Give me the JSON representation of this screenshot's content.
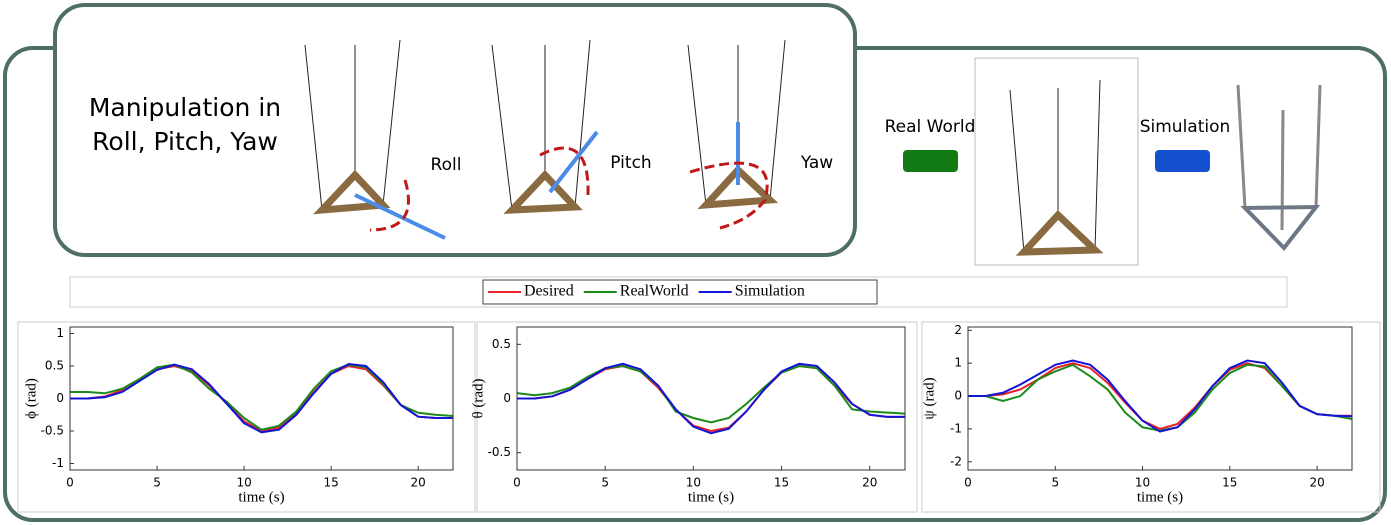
{
  "figure": {
    "title_lines": [
      "Manipulation in",
      "Roll, Pitch, Yaw"
    ],
    "motions": [
      "Roll",
      "Pitch",
      "Yaw"
    ],
    "sources": [
      "Real World",
      "Simulation"
    ]
  },
  "chart_data": [
    {
      "type": "line",
      "y_label": "ϕ (rad)",
      "x_label": "time (s)",
      "x": [
        0,
        1,
        2,
        3,
        4,
        5,
        6,
        7,
        8,
        9,
        10,
        11,
        12,
        13,
        14,
        15,
        16,
        17,
        18,
        19,
        20,
        21,
        22
      ],
      "xlim": [
        0,
        22
      ],
      "xticks": [
        0,
        5,
        10,
        15,
        20
      ],
      "ylim": [
        -1.1,
        1.1
      ],
      "yticks": [
        -1,
        -0.5,
        0,
        0.5,
        1
      ],
      "series": [
        {
          "name": "Desired",
          "color": "#e8202a",
          "values": [
            0,
            0,
            0.03,
            0.13,
            0.3,
            0.45,
            0.5,
            0.42,
            0.2,
            -0.08,
            -0.35,
            -0.5,
            -0.45,
            -0.22,
            0.1,
            0.38,
            0.5,
            0.45,
            0.2,
            -0.1,
            -0.28,
            -0.3,
            -0.3
          ]
        },
        {
          "name": "RealWorld",
          "color": "#1a8a1a",
          "values": [
            0.1,
            0.1,
            0.08,
            0.15,
            0.3,
            0.48,
            0.52,
            0.4,
            0.15,
            -0.05,
            -0.3,
            -0.48,
            -0.42,
            -0.2,
            0.15,
            0.42,
            0.52,
            0.48,
            0.22,
            -0.1,
            -0.22,
            -0.25,
            -0.27
          ]
        },
        {
          "name": "Simulation",
          "color": "#1414d8",
          "values": [
            0,
            0,
            0.02,
            0.1,
            0.27,
            0.44,
            0.52,
            0.45,
            0.22,
            -0.08,
            -0.38,
            -0.52,
            -0.48,
            -0.25,
            0.08,
            0.38,
            0.53,
            0.5,
            0.25,
            -0.1,
            -0.28,
            -0.3,
            -0.3
          ]
        }
      ]
    },
    {
      "type": "line",
      "y_label": "θ (rad)",
      "x_label": "time (s)",
      "x": [
        0,
        1,
        2,
        3,
        4,
        5,
        6,
        7,
        8,
        9,
        10,
        11,
        12,
        13,
        14,
        15,
        16,
        17,
        18,
        19,
        20,
        21,
        22
      ],
      "xlim": [
        0,
        22
      ],
      "xticks": [
        0,
        5,
        10,
        15,
        20
      ],
      "ylim": [
        -0.66,
        0.66
      ],
      "yticks": [
        -0.5,
        0,
        0.5
      ],
      "series": [
        {
          "color": "#e8202a",
          "values": [
            0,
            0,
            0.02,
            0.08,
            0.18,
            0.27,
            0.3,
            0.25,
            0.1,
            -0.1,
            -0.25,
            -0.3,
            -0.27,
            -0.12,
            0.08,
            0.24,
            0.3,
            0.28,
            0.12,
            -0.05,
            -0.15,
            -0.17,
            -0.17
          ]
        },
        {
          "color": "#1a8a1a",
          "values": [
            0.05,
            0.03,
            0.05,
            0.1,
            0.2,
            0.28,
            0.3,
            0.25,
            0.12,
            -0.12,
            -0.18,
            -0.22,
            -0.18,
            -0.05,
            0.1,
            0.24,
            0.3,
            0.28,
            0.12,
            -0.1,
            -0.12,
            -0.13,
            -0.14
          ]
        },
        {
          "color": "#1414d8",
          "values": [
            0,
            0,
            0.02,
            0.08,
            0.18,
            0.28,
            0.32,
            0.27,
            0.12,
            -0.1,
            -0.26,
            -0.32,
            -0.28,
            -0.12,
            0.08,
            0.25,
            0.32,
            0.3,
            0.15,
            -0.05,
            -0.15,
            -0.17,
            -0.17
          ]
        }
      ]
    },
    {
      "type": "line",
      "y_label": "ψ (rad)",
      "x_label": "time (s)",
      "x": [
        0,
        1,
        2,
        3,
        4,
        5,
        6,
        7,
        8,
        9,
        10,
        11,
        12,
        13,
        14,
        15,
        16,
        17,
        18,
        19,
        20,
        21,
        22
      ],
      "xlim": [
        0,
        22
      ],
      "xticks": [
        0,
        5,
        10,
        15,
        20
      ],
      "ylim": [
        -2.25,
        2.1
      ],
      "yticks": [
        -2,
        -1,
        0,
        1,
        2
      ],
      "series": [
        {
          "color": "#e8202a",
          "values": [
            0,
            0,
            0.05,
            0.2,
            0.5,
            0.85,
            1,
            0.85,
            0.4,
            -0.2,
            -0.75,
            -1,
            -0.85,
            -0.35,
            0.3,
            0.8,
            1,
            0.85,
            0.3,
            -0.3,
            -0.55,
            -0.6,
            -0.6
          ]
        },
        {
          "color": "#1a8a1a",
          "values": [
            0,
            0,
            -0.15,
            0,
            0.5,
            0.75,
            0.95,
            0.6,
            0.2,
            -0.5,
            -0.95,
            -1.05,
            -0.95,
            -0.5,
            0.2,
            0.7,
            0.95,
            0.9,
            0.3,
            -0.3,
            -0.55,
            -0.6,
            -0.7
          ]
        },
        {
          "color": "#1414d8",
          "values": [
            0,
            0,
            0.1,
            0.35,
            0.65,
            0.95,
            1.08,
            0.95,
            0.5,
            -0.15,
            -0.75,
            -1.08,
            -0.95,
            -0.4,
            0.3,
            0.85,
            1.08,
            1.0,
            0.4,
            -0.3,
            -0.55,
            -0.6,
            -0.62
          ]
        }
      ]
    }
  ]
}
